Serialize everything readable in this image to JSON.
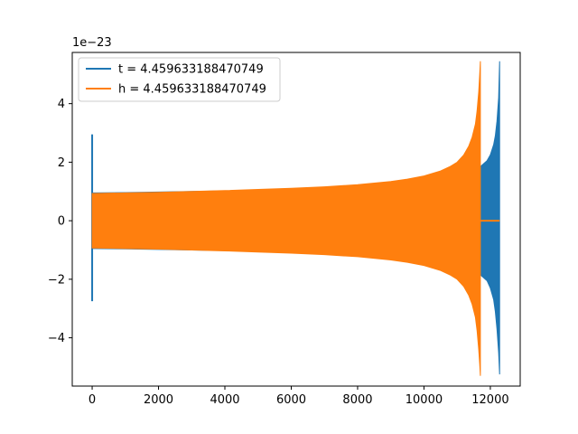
{
  "chart_data": {
    "type": "line",
    "title": "",
    "xlabel": "",
    "ylabel": "",
    "xlim": [
      -600,
      12900
    ],
    "ylim": [
      -5.65,
      5.75
    ],
    "y_scale_note": "1e−23",
    "x_ticks": [
      0,
      2000,
      4000,
      6000,
      8000,
      10000,
      12000
    ],
    "x_tick_labels": [
      "0",
      "2000",
      "4000",
      "6000",
      "8000",
      "10000",
      "12000"
    ],
    "y_ticks": [
      -4,
      -2,
      0,
      2,
      4
    ],
    "y_tick_labels": [
      "−4",
      "−2",
      "0",
      "2",
      "4"
    ],
    "grid": false,
    "legend_position": "upper-left",
    "series": [
      {
        "name": "t = 4.459633188470749",
        "color": "#1f77b4",
        "envelope": {
          "x": [
            0,
            1000,
            2000,
            3000,
            4000,
            5000,
            6000,
            7000,
            8000,
            9000,
            9500,
            10000,
            10500,
            11000,
            11300,
            11500,
            11700,
            11800,
            11900,
            12000,
            12100,
            12150,
            12200,
            12250,
            12280
          ],
          "upper": [
            0.95,
            0.96,
            0.98,
            1.0,
            1.02,
            1.04,
            1.07,
            1.1,
            1.13,
            1.18,
            1.22,
            1.28,
            1.36,
            1.48,
            1.58,
            1.7,
            1.85,
            1.95,
            2.05,
            2.25,
            2.6,
            2.9,
            3.4,
            4.2,
            5.45
          ],
          "lower": [
            -0.95,
            -0.96,
            -0.98,
            -1.0,
            -1.02,
            -1.04,
            -1.07,
            -1.1,
            -1.13,
            -1.18,
            -1.22,
            -1.28,
            -1.36,
            -1.48,
            -1.58,
            -1.7,
            -1.85,
            -1.95,
            -2.05,
            -2.3,
            -2.7,
            -3.1,
            -3.7,
            -4.5,
            -5.25
          ]
        },
        "spike": {
          "x": 0,
          "max": 2.95,
          "min": -2.75
        }
      },
      {
        "name": "h = 4.459633188470749",
        "color": "#ff7f0e",
        "envelope": {
          "x": [
            0,
            1000,
            2000,
            3000,
            4000,
            5000,
            6000,
            7000,
            8000,
            9000,
            9500,
            10000,
            10500,
            10800,
            11000,
            11200,
            11350,
            11450,
            11550,
            11600,
            11650,
            11680,
            11700
          ],
          "upper": [
            0.93,
            0.95,
            0.97,
            1.0,
            1.03,
            1.07,
            1.11,
            1.16,
            1.23,
            1.34,
            1.42,
            1.53,
            1.7,
            1.86,
            2.0,
            2.25,
            2.55,
            2.85,
            3.3,
            3.75,
            4.4,
            5.0,
            5.45
          ],
          "lower": [
            -0.93,
            -0.95,
            -0.97,
            -1.0,
            -1.03,
            -1.07,
            -1.11,
            -1.16,
            -1.23,
            -1.34,
            -1.42,
            -1.53,
            -1.7,
            -1.86,
            -2.0,
            -2.25,
            -2.55,
            -2.85,
            -3.3,
            -3.75,
            -4.4,
            -4.9,
            -5.3
          ]
        },
        "tail": {
          "x": [
            11700,
            12280
          ],
          "y": [
            0,
            0
          ]
        }
      }
    ]
  }
}
